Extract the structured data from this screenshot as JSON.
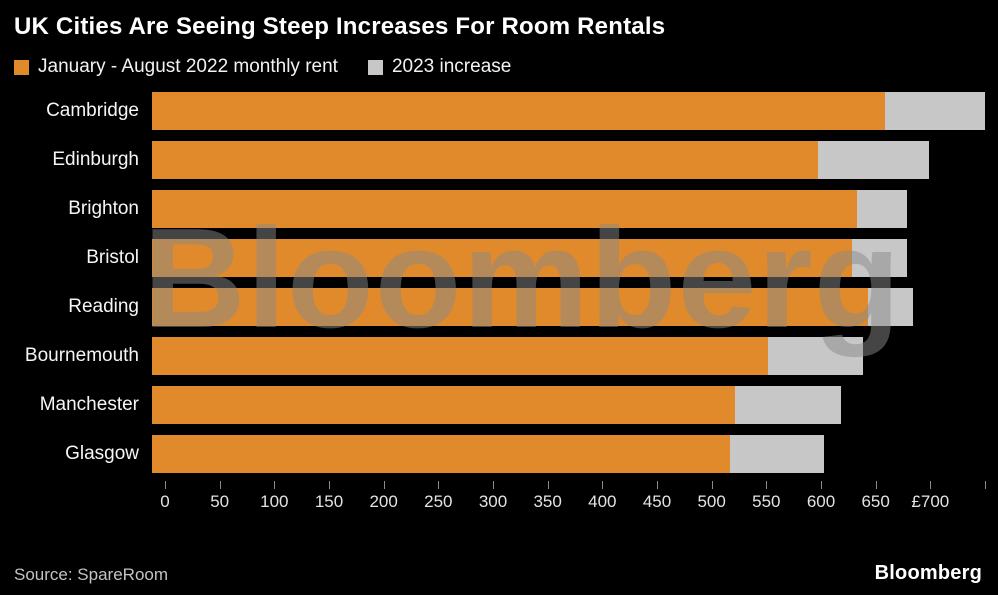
{
  "title": "UK Cities Are Seeing Steep Increases For Room Rentals",
  "legend": [
    {
      "label": "January - August 2022 monthly rent",
      "color": "#E08A2B"
    },
    {
      "label": "2023 increase",
      "color": "#C7C7C7"
    }
  ],
  "watermark": "Bloomberg",
  "footer": {
    "source": "Source: SpareRoom",
    "brand": "Bloomberg"
  },
  "chart_data": {
    "type": "bar",
    "orientation": "horizontal",
    "stacked": true,
    "title": "UK Cities Are Seeing Steep Increases For Room Rentals",
    "categories": [
      "Cambridge",
      "Edinburgh",
      "Brighton",
      "Bristol",
      "Reading",
      "Bournemouth",
      "Manchester",
      "Glasgow"
    ],
    "series": [
      {
        "name": "January - August 2022 monthly rent",
        "color": "#E08A2B",
        "values": [
          660,
          600,
          635,
          630,
          645,
          555,
          525,
          520
        ]
      },
      {
        "name": "2023 increase",
        "color": "#C7C7C7",
        "values": [
          90,
          100,
          45,
          50,
          40,
          85,
          95,
          85
        ]
      }
    ],
    "xlabel": "",
    "ylabel": "",
    "xlim": [
      0,
      750
    ],
    "grid": false,
    "legend_position": "top",
    "xticks": [
      0,
      50,
      100,
      150,
      200,
      250,
      300,
      350,
      400,
      450,
      500,
      550,
      600,
      650,
      700
    ],
    "xtick_labels": [
      "0",
      "50",
      "100",
      "150",
      "200",
      "250",
      "300",
      "350",
      "400",
      "450",
      "500",
      "550",
      "600",
      "650",
      "£700"
    ],
    "minor_tick_step": 50,
    "units": "GBP per month"
  }
}
